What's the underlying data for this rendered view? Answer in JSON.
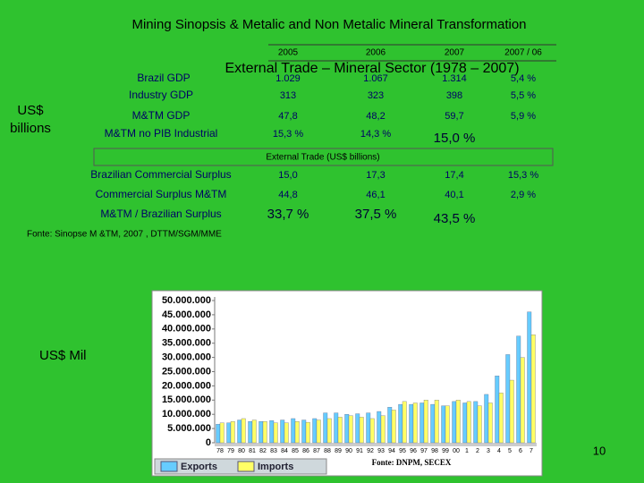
{
  "title": "Mining Sinopsis & Metalic and Non Metalic Mineral Transformation",
  "unit_label": [
    "US$",
    "billions"
  ],
  "overlay_title": "External Trade – Mineral Sector (1978 – 2007)",
  "table1": {
    "header": [
      "2005",
      "2006",
      "2007",
      "2007 / 06"
    ],
    "rows": [
      [
        "Brazil GDP",
        "1.029",
        "1.067",
        "1.314",
        "5,4 %"
      ],
      [
        "Industry GDP",
        "313",
        "323",
        "398",
        "5,5 %"
      ],
      [
        "M&TM GDP",
        "47,8",
        "48,2",
        "59,7",
        "5,9 %"
      ],
      [
        "M&TM no PIB Industrial",
        "15,3 %",
        "14,3 %",
        "15,0 %"
      ]
    ]
  },
  "section_title": "External Trade (US$ billions)",
  "table2": {
    "rows": [
      [
        "Brazilian Commercial Surplus",
        "15,0",
        "17,3",
        "17,4",
        "15,3 %"
      ],
      [
        "Commercial Surplus M&TM",
        "44,8",
        "46,1",
        "40,1",
        "2,9 %"
      ],
      [
        "M&TM / Brazilian Surplus",
        "33,7 %",
        "37,5 %",
        "43,5 %"
      ]
    ]
  },
  "source": "Fonte: Sinopse M &TM, 2007 , DTTM/SGM/MME",
  "page_number": "10",
  "chart_data": {
    "type": "bar",
    "y_axis_label": "US$ Mil",
    "source": "Fonte: DNPM, SECEX",
    "categories": [
      "78",
      "79",
      "80",
      "81",
      "82",
      "83",
      "84",
      "85",
      "86",
      "87",
      "88",
      "89",
      "90",
      "91",
      "92",
      "93",
      "94",
      "95",
      "96",
      "97",
      "98",
      "99",
      "00",
      "1",
      "2",
      "3",
      "4",
      "5",
      "6",
      "7"
    ],
    "series": [
      {
        "name": "Exports",
        "color": "#66ccff",
        "values": [
          6500000,
          7000000,
          8000000,
          7500000,
          7500000,
          7800000,
          8000000,
          8500000,
          8000000,
          8500000,
          10500000,
          10500000,
          10000000,
          10200000,
          10500000,
          11000000,
          12500000,
          13500000,
          13500000,
          14000000,
          13500000,
          13000000,
          14500000,
          14000000,
          14500000,
          17000000,
          23500000,
          31000000,
          37500000,
          46000000
        ]
      },
      {
        "name": "Imports",
        "color": "#ffff66",
        "values": [
          7000000,
          7500000,
          8500000,
          8000000,
          7500000,
          7000000,
          7000000,
          7500000,
          7200000,
          8000000,
          8500000,
          9000000,
          9500000,
          9000000,
          8500000,
          9500000,
          11500000,
          14500000,
          14000000,
          15000000,
          15000000,
          13000000,
          15000000,
          14500000,
          13000000,
          14000000,
          17500000,
          22000000,
          30000000,
          38000000
        ]
      }
    ],
    "ylim": [
      0,
      50000000
    ],
    "yticks": [
      0,
      {
        "value": 5000000,
        "label": "5.000.000"
      },
      {
        "value": 10000000,
        "label": "10.000.000"
      },
      {
        "value": 15000000,
        "label": "15.000.000"
      },
      {
        "value": 20000000,
        "label": "20.000.000"
      },
      {
        "value": 25000000,
        "label": "25.000.000"
      },
      {
        "value": 30000000,
        "label": "30.000.000"
      },
      {
        "value": 35000000,
        "label": "35.000.000"
      },
      {
        "value": 40000000,
        "label": "40.000.000"
      },
      {
        "value": 45000000,
        "label": "45.000.000"
      },
      {
        "value": 50000000,
        "label": "50.000.000"
      }
    ],
    "grid": false,
    "legend": "bottom-left"
  }
}
